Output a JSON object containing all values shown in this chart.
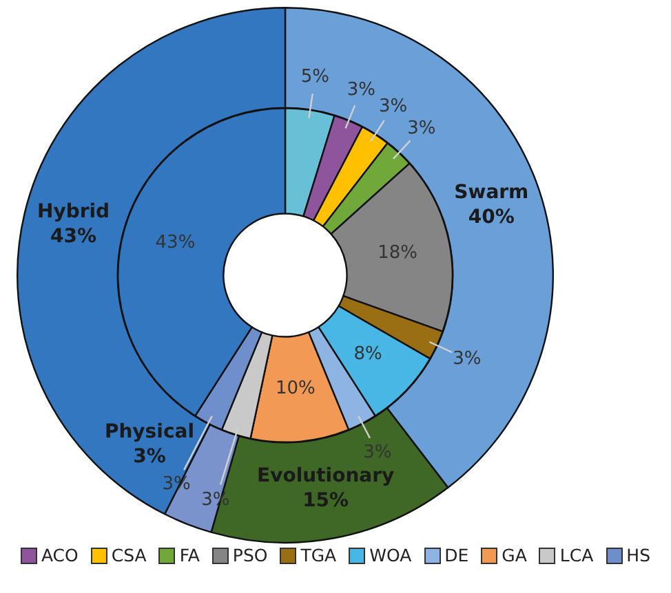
{
  "chart_data": [
    {
      "type": "donut",
      "categories": [
        "Swarm",
        "Evolutionary",
        "Physical",
        "Hybrid"
      ],
      "values": [
        40,
        15,
        3,
        43
      ],
      "value_labels": [
        "40%",
        "15%",
        "3%",
        "43%"
      ],
      "colors": [
        "#6a9fd8",
        "#3f6826",
        "#7a93cc",
        "#3277bf"
      ]
    },
    {
      "type": "donut",
      "categories": [
        null,
        "ACO",
        "CSA",
        "FA",
        "PSO",
        "TGA",
        "WOA",
        "DE",
        "GA",
        "LCA",
        "HS",
        null
      ],
      "values": [
        5,
        3,
        3,
        3,
        18,
        3,
        8,
        3,
        10,
        3,
        3,
        43
      ],
      "value_labels": [
        "5%",
        "3%",
        "3%",
        "3%",
        "18%",
        "3%",
        "8%",
        "3%",
        "10%",
        "3%",
        "3%",
        "43%"
      ],
      "colors": [
        "#67c0d6",
        "#8e549c",
        "#ffc000",
        "#70a83a",
        "#858585",
        "#9a6f13",
        "#49b7e6",
        "#8db4e2",
        "#f29a55",
        "#c9c9c9",
        "#6f8fcc",
        "#3277bf"
      ],
      "legend": "bottom"
    }
  ]
}
